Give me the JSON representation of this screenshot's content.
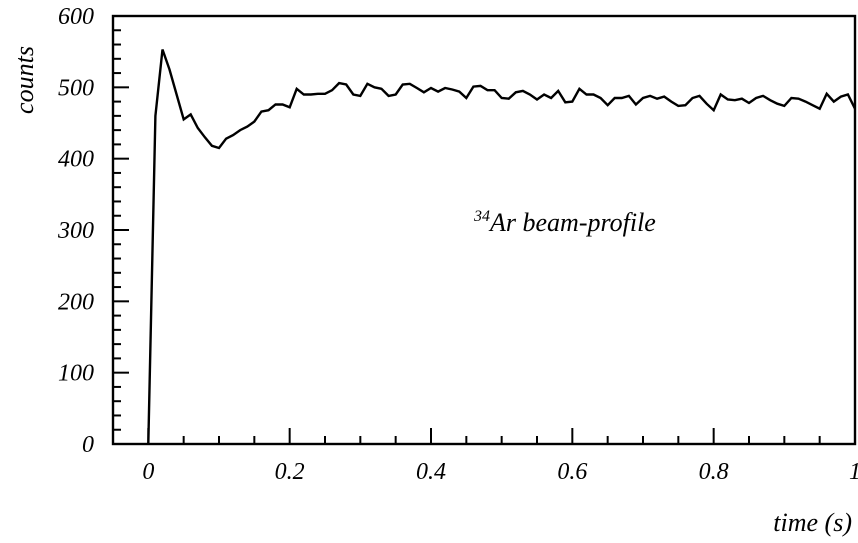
{
  "chart_data": {
    "type": "line",
    "title": "",
    "xlabel": "time (s)",
    "ylabel": "counts",
    "xlim": [
      -0.05,
      1.0
    ],
    "ylim": [
      0,
      600
    ],
    "xticks": [
      {
        "value": 0,
        "label": "0"
      },
      {
        "value": 0.2,
        "label": "0.2"
      },
      {
        "value": 0.4,
        "label": "0.4"
      },
      {
        "value": 0.6,
        "label": "0.6"
      },
      {
        "value": 0.8,
        "label": "0.8"
      },
      {
        "value": 1.0,
        "label": "1"
      }
    ],
    "yticks": [
      {
        "value": 0,
        "label": "0"
      },
      {
        "value": 100,
        "label": "100"
      },
      {
        "value": 200,
        "label": "200"
      },
      {
        "value": 300,
        "label": "300"
      },
      {
        "value": 400,
        "label": "400"
      },
      {
        "value": 500,
        "label": "500"
      },
      {
        "value": 600,
        "label": "600"
      }
    ],
    "annotation": {
      "isotope_mass": "34",
      "text": "Ar beam-profile"
    },
    "series": [
      {
        "x": [
          0.0,
          0.01,
          0.02,
          0.03,
          0.04,
          0.05,
          0.06,
          0.07,
          0.08,
          0.09,
          0.1,
          0.11,
          0.12,
          0.13,
          0.14,
          0.15,
          0.16,
          0.17,
          0.18,
          0.19,
          0.2,
          0.21,
          0.22,
          0.23,
          0.24,
          0.25,
          0.26,
          0.27,
          0.28,
          0.29,
          0.3,
          0.31,
          0.32,
          0.33,
          0.34,
          0.35,
          0.36,
          0.37,
          0.38,
          0.39,
          0.4,
          0.41,
          0.42,
          0.43,
          0.44,
          0.45,
          0.46,
          0.47,
          0.48,
          0.49,
          0.5,
          0.51,
          0.52,
          0.53,
          0.54,
          0.55,
          0.56,
          0.57,
          0.58,
          0.59,
          0.6,
          0.61,
          0.62,
          0.63,
          0.64,
          0.65,
          0.66,
          0.67,
          0.68,
          0.69,
          0.7,
          0.71,
          0.72,
          0.73,
          0.74,
          0.75,
          0.76,
          0.77,
          0.78,
          0.79,
          0.8,
          0.81,
          0.82,
          0.83,
          0.84,
          0.85,
          0.86,
          0.87,
          0.88,
          0.89,
          0.9,
          0.91,
          0.92,
          0.93,
          0.94,
          0.95,
          0.96,
          0.97,
          0.98,
          0.99,
          1.0
        ],
        "values": [
          0,
          460,
          553,
          525,
          490,
          455,
          462,
          443,
          430,
          418,
          415,
          428,
          433,
          440,
          445,
          452,
          466,
          468,
          476,
          476,
          472,
          498,
          490,
          490,
          491,
          491,
          496,
          506,
          504,
          490,
          488,
          505,
          500,
          498,
          488,
          490,
          504,
          505,
          499,
          493,
          499,
          494,
          499,
          497,
          494,
          485,
          501,
          502,
          496,
          496,
          485,
          484,
          493,
          495,
          490,
          483,
          490,
          485,
          495,
          479,
          480,
          498,
          490,
          490,
          485,
          475,
          485,
          485,
          488,
          476,
          485,
          488,
          484,
          487,
          480,
          474,
          475,
          485,
          488,
          477,
          468,
          490,
          483,
          482,
          484,
          478,
          485,
          488,
          482,
          477,
          474,
          485,
          484,
          480,
          475,
          470,
          491,
          480,
          487,
          490,
          470
        ]
      }
    ]
  }
}
